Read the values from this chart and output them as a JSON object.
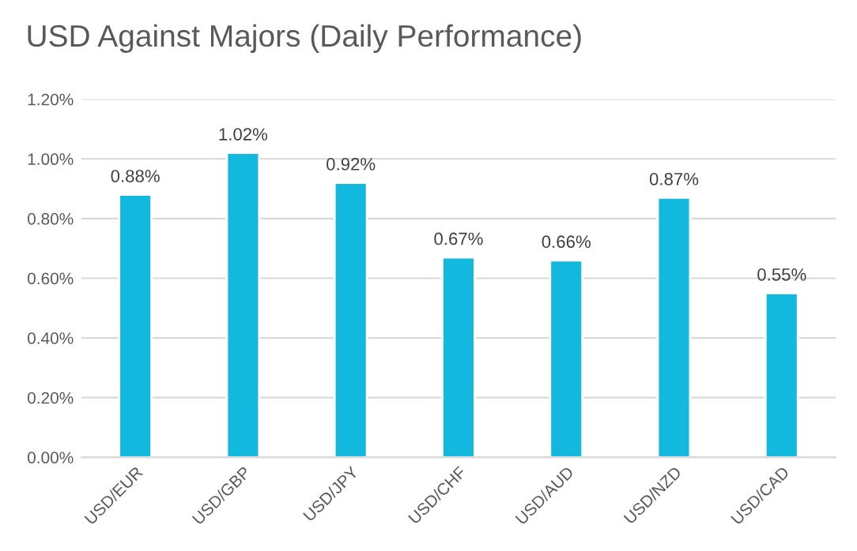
{
  "chart_data": {
    "type": "bar",
    "title": "USD Against Majors (Daily Performance)",
    "categories": [
      "USD/EUR",
      "USD/GBP",
      "USD/JPY",
      "USD/CHF",
      "USD/AUD",
      "USD/NZD",
      "USD/CAD"
    ],
    "values": [
      0.88,
      1.02,
      0.92,
      0.67,
      0.66,
      0.87,
      0.55
    ],
    "value_labels": [
      "0.88%",
      "1.02%",
      "0.92%",
      "0.67%",
      "0.66%",
      "0.87%",
      "0.55%"
    ],
    "color": "#12b8de",
    "ylim": [
      0,
      1.2
    ],
    "yticks": [
      {
        "value": 0,
        "label": "0.00%"
      },
      {
        "value": 0.2,
        "label": "0.20%"
      },
      {
        "value": 0.4,
        "label": "0.40%"
      },
      {
        "value": 0.6,
        "label": "0.60%"
      },
      {
        "value": 0.8,
        "label": "0.80%"
      },
      {
        "value": 1.0,
        "label": "1.00%"
      },
      {
        "value": 1.2,
        "label": "1.20%"
      }
    ],
    "grid": "y"
  }
}
